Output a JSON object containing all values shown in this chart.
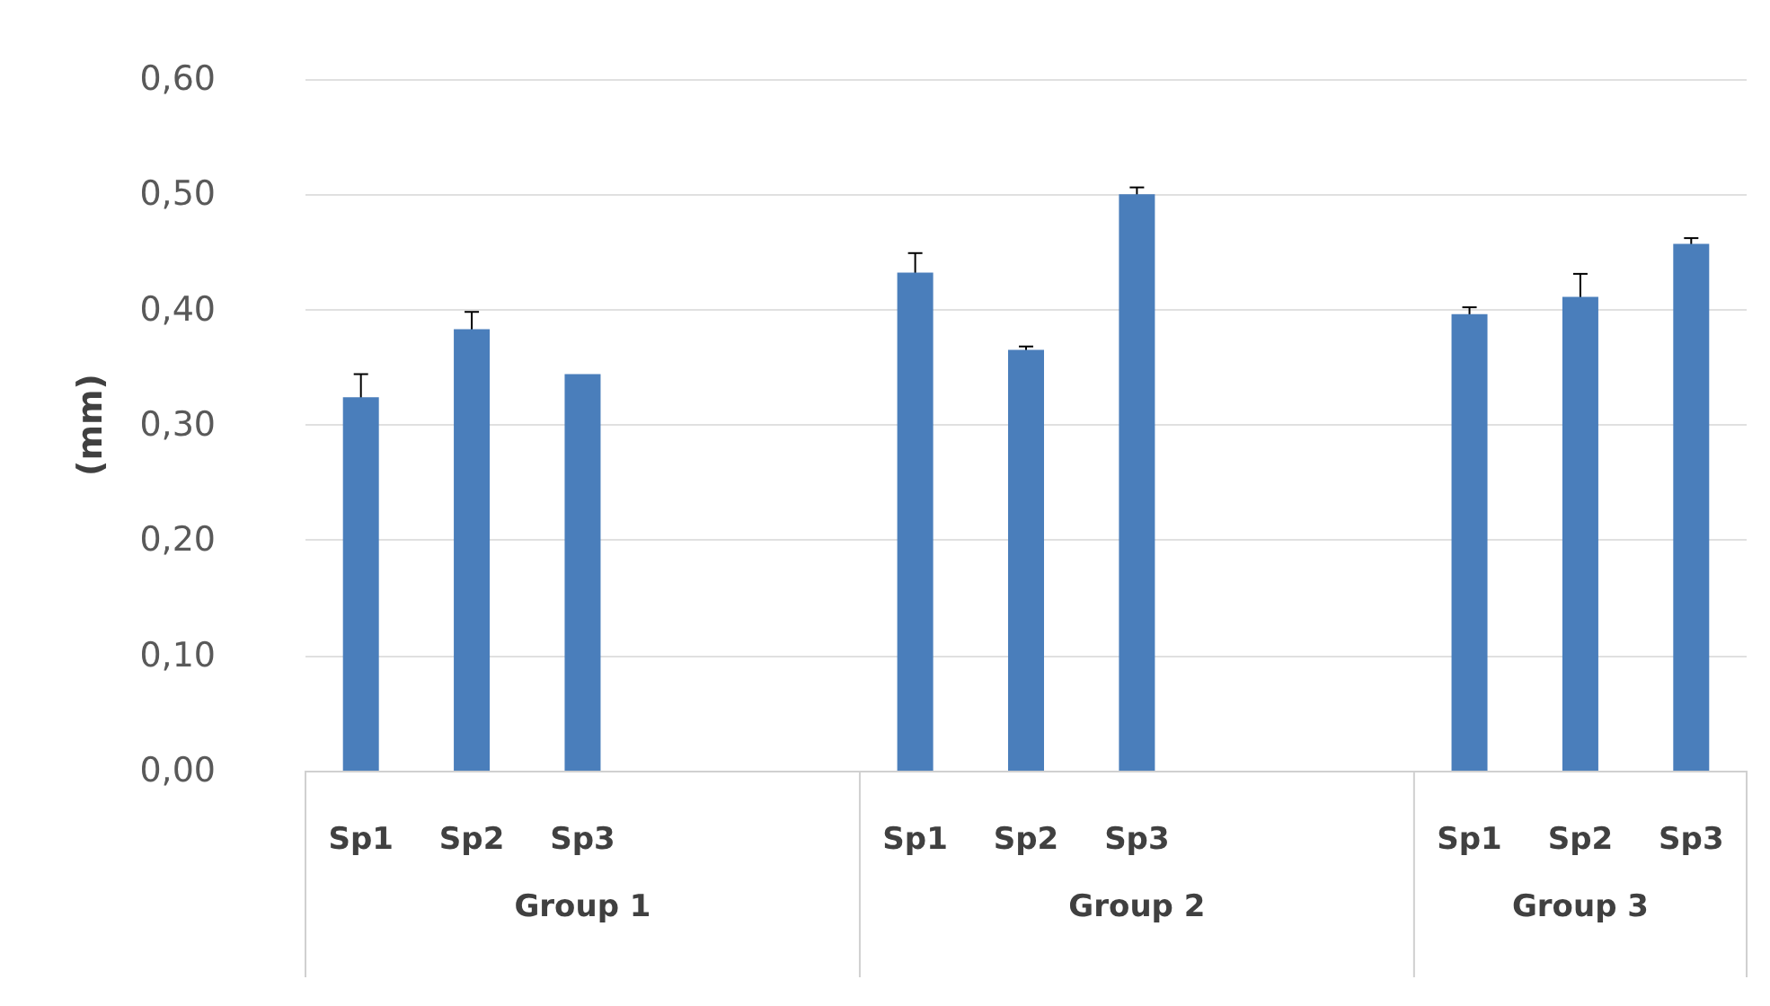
{
  "chart_data": {
    "type": "bar",
    "ylabel": "(mm)",
    "categories": [
      "Sp1",
      "Sp2",
      "Sp3",
      null,
      null,
      "Sp1",
      "Sp2",
      "Sp3",
      null,
      null,
      "Sp1",
      "Sp2",
      "Sp3"
    ],
    "values": [
      0.324,
      0.383,
      0.344,
      null,
      null,
      0.432,
      0.365,
      0.5,
      null,
      null,
      0.396,
      0.411,
      0.457
    ],
    "errors": [
      0.02,
      0.015,
      null,
      null,
      null,
      0.017,
      0.003,
      0.006,
      null,
      null,
      0.006,
      0.02,
      0.005
    ],
    "color": "#4a7ebb",
    "ylim": [
      0,
      0.6
    ],
    "yticks": [
      {
        "value": 0,
        "label": "0,00"
      },
      {
        "value": 0.1,
        "label": "0,10"
      },
      {
        "value": 0.2,
        "label": "0,20"
      },
      {
        "value": 0.3,
        "label": "0,30"
      },
      {
        "value": 0.4,
        "label": "0,40"
      },
      {
        "value": 0.5,
        "label": "0,50"
      },
      {
        "value": 0.6,
        "label": "0,60"
      }
    ],
    "grid": "y",
    "annotations": [
      "Group 1",
      "Group 2",
      "Group 3"
    ]
  }
}
